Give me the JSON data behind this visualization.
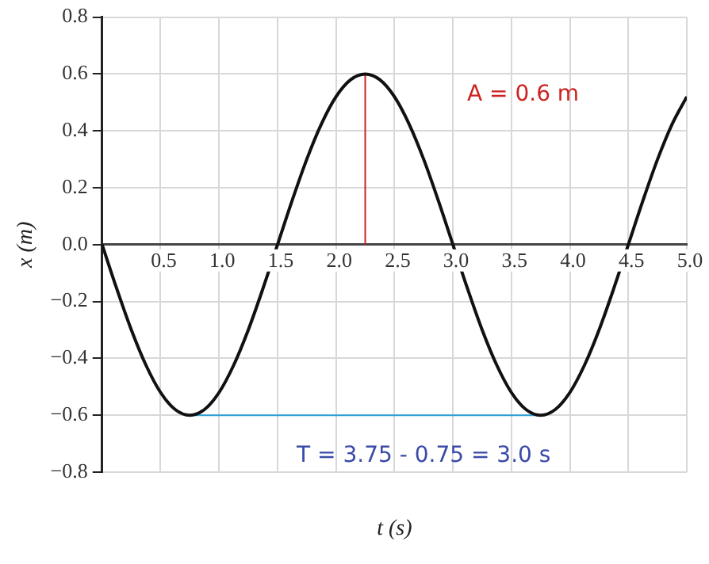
{
  "chart_data": {
    "type": "line",
    "xlabel": "t (s)",
    "ylabel": "x (m)",
    "xlim": [
      0,
      5
    ],
    "ylim": [
      -0.8,
      0.8
    ],
    "xticks": [
      {
        "value": 0.5,
        "label": "0.5"
      },
      {
        "value": 1,
        "label": "1.0"
      },
      {
        "value": 1.5,
        "label": "1.5"
      },
      {
        "value": 2,
        "label": "2.0"
      },
      {
        "value": 2.5,
        "label": "2.5"
      },
      {
        "value": 3,
        "label": "3.0"
      },
      {
        "value": 3.5,
        "label": "3.5"
      },
      {
        "value": 4,
        "label": "4.0"
      },
      {
        "value": 4.5,
        "label": "4.5"
      },
      {
        "value": 5,
        "label": "5.0"
      }
    ],
    "yticks": [
      {
        "value": -0.8,
        "label": "−0.8"
      },
      {
        "value": -0.6,
        "label": "−0.6"
      },
      {
        "value": -0.4,
        "label": "−0.4"
      },
      {
        "value": -0.2,
        "label": "−0.2"
      },
      {
        "value": 0,
        "label": "0.0"
      },
      {
        "value": 0.2,
        "label": "0.2"
      },
      {
        "value": 0.4,
        "label": "0.4"
      },
      {
        "value": 0.6,
        "label": "0.6"
      },
      {
        "value": 0.8,
        "label": "0.8"
      }
    ],
    "grid": true,
    "legend": false,
    "marker": "none",
    "line_style": "solid",
    "series": [
      {
        "color": "#111111",
        "x": [
          0,
          0.125,
          0.25,
          0.375,
          0.5,
          0.625,
          0.75,
          0.875,
          1,
          1.125,
          1.25,
          1.375,
          1.5,
          1.625,
          1.75,
          1.875,
          2,
          2.125,
          2.25,
          2.375,
          2.5,
          2.625,
          2.75,
          2.875,
          3,
          3.125,
          3.25,
          3.375,
          3.5,
          3.625,
          3.75,
          3.875,
          4,
          4.125,
          4.25,
          4.375,
          4.5,
          4.625,
          4.75,
          4.875,
          5
        ],
        "values": [
          0,
          -0.155,
          -0.3,
          -0.424,
          -0.52,
          -0.58,
          -0.6,
          -0.58,
          -0.52,
          -0.424,
          -0.3,
          -0.155,
          0,
          0.155,
          0.3,
          0.424,
          0.52,
          0.58,
          0.6,
          0.58,
          0.52,
          0.424,
          0.3,
          0.155,
          0,
          -0.155,
          -0.3,
          -0.424,
          -0.52,
          -0.58,
          -0.6,
          -0.58,
          -0.52,
          -0.424,
          -0.3,
          -0.155,
          0,
          0.155,
          0.3,
          0.424,
          0.52
        ]
      },
      {
        "color": "#cc2222",
        "x": [
          2.25,
          2.25
        ],
        "values": [
          0,
          0.6
        ]
      },
      {
        "color": "#2a9fd6",
        "x": [
          0.75,
          3.75
        ],
        "values": [
          -0.6,
          -0.6
        ]
      }
    ],
    "annotations": [
      "A = 0.6 m",
      "T = 3.75 - 0.75 = 3.0 s"
    ]
  }
}
